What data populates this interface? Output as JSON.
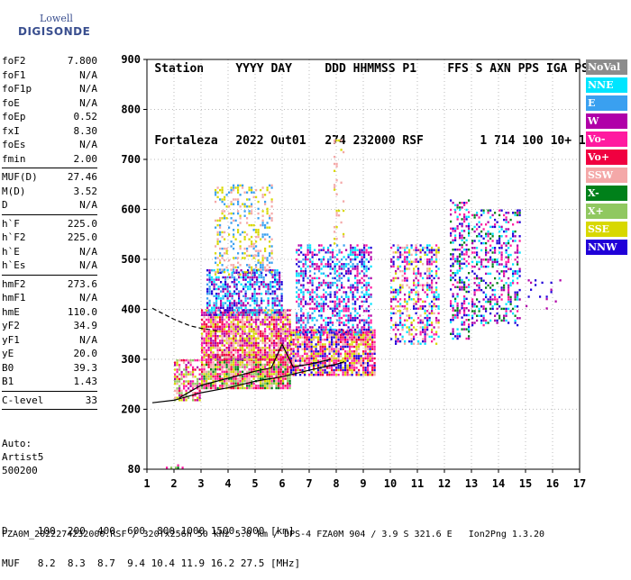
{
  "logo": {
    "line1": "Lowell",
    "line2": "DIGISONDE"
  },
  "header": {
    "row1": [
      "Station",
      "YYYY DAY",
      "DDD HHMMSS P1",
      "FFS S AXN PPS IGA PS"
    ],
    "row2": [
      "Fortaleza",
      "2022 Out01",
      "274 232000 RSF",
      "1 714 100 10+ 11"
    ]
  },
  "params": [
    {
      "label": "foF2",
      "value": "7.800"
    },
    {
      "label": "foF1",
      "value": "N/A"
    },
    {
      "label": "foF1p",
      "value": "N/A"
    },
    {
      "label": "foE",
      "value": "N/A"
    },
    {
      "label": "foEp",
      "value": "0.52"
    },
    {
      "label": "fxI",
      "value": "8.30"
    },
    {
      "label": "foEs",
      "value": "N/A"
    },
    {
      "label": "fmin",
      "value": "2.00"
    },
    {
      "sep": true
    },
    {
      "label": "MUF(D)",
      "value": "27.46"
    },
    {
      "label": "M(D)",
      "value": "3.52"
    },
    {
      "label": "D",
      "value": "N/A"
    },
    {
      "sep": true
    },
    {
      "label": "h`F",
      "value": "225.0"
    },
    {
      "label": "h`F2",
      "value": "225.0"
    },
    {
      "label": "h`E",
      "value": "N/A"
    },
    {
      "label": "h`Es",
      "value": "N/A"
    },
    {
      "sep": true
    },
    {
      "label": "hmF2",
      "value": "273.6"
    },
    {
      "label": "hmF1",
      "value": "N/A"
    },
    {
      "label": "hmE",
      "value": "110.0"
    },
    {
      "label": "yF2",
      "value": "34.9"
    },
    {
      "label": "yF1",
      "value": "N/A"
    },
    {
      "label": "yE",
      "value": "20.0"
    },
    {
      "label": "B0",
      "value": "39.3"
    },
    {
      "label": "B1",
      "value": "1.43"
    },
    {
      "sep": true
    },
    {
      "label": "C-level",
      "value": "33"
    },
    {
      "sep": true
    }
  ],
  "auto": {
    "line1": "Auto:",
    "line2": "Artist5",
    "line3": "500200"
  },
  "dtable": {
    "row1": "D     100  200  400  600  800 1000 1500 3000 [km]",
    "row2": "MUF   8.2  8.3  8.7  9.4 10.4 11.9 16.2 27.5 [MHz]"
  },
  "footer": "FZA0M_2022274232000.RSF / 320fx256h 50 kHz 5.0 km / DPS-4 FZA0M 904 / 3.9 S 321.6 E   Ion2Png 1.3.20",
  "legend": [
    {
      "label": "NoVal",
      "color": "#8c8c8c"
    },
    {
      "label": "NNE",
      "color": "#00e5ff"
    },
    {
      "label": "E",
      "color": "#3aa0f0"
    },
    {
      "label": "W",
      "color": "#b000a8"
    },
    {
      "label": "Vo-",
      "color": "#ff1aa0"
    },
    {
      "label": "Vo+",
      "color": "#f00040"
    },
    {
      "label": "SSW",
      "color": "#f4a8a8"
    },
    {
      "label": "X-",
      "color": "#00801a"
    },
    {
      "label": "X+",
      "color": "#90c860"
    },
    {
      "label": "SSE",
      "color": "#d8d800"
    },
    {
      "label": "NNW",
      "color": "#2000d8"
    }
  ],
  "chart_data": {
    "type": "scatter",
    "title": "",
    "xlabel": "",
    "ylabel": "",
    "xlim": [
      1,
      17
    ],
    "ylim": [
      80,
      900
    ],
    "x_ticks": [
      1,
      2,
      3,
      4,
      5,
      6,
      7,
      8,
      9,
      10,
      11,
      12,
      13,
      14,
      15,
      16,
      17
    ],
    "y_ticks": [
      80,
      200,
      300,
      400,
      500,
      600,
      700,
      800,
      900
    ],
    "grid": "dotted",
    "legend_position": "right",
    "echo_clusters": [
      {
        "x0": 1.7,
        "x1": 2.3,
        "y0": 83,
        "y1": 90,
        "density": 0.6,
        "colors": [
          "#00801a",
          "#ff1aa0",
          "#90c860"
        ]
      },
      {
        "x0": 2.0,
        "x1": 3.0,
        "y0": 220,
        "y1": 300,
        "density": 0.65,
        "colors": [
          "#ff1aa0",
          "#f00040",
          "#d8d800",
          "#f4a8a8",
          "#90c860",
          "#b000a8"
        ]
      },
      {
        "x0": 3.0,
        "x1": 6.3,
        "y0": 240,
        "y1": 310,
        "density": 0.9,
        "colors": [
          "#d8d800",
          "#90c860",
          "#ff1aa0",
          "#f4a8a8",
          "#f00040",
          "#00801a"
        ]
      },
      {
        "x0": 3.0,
        "x1": 6.3,
        "y0": 300,
        "y1": 400,
        "density": 0.85,
        "colors": [
          "#ff1aa0",
          "#b000a8",
          "#f00040",
          "#f4a8a8",
          "#d8d800"
        ]
      },
      {
        "x0": 3.2,
        "x1": 6.0,
        "y0": 390,
        "y1": 480,
        "density": 0.6,
        "colors": [
          "#3aa0f0",
          "#00e5ff",
          "#b000a8",
          "#2000d8"
        ]
      },
      {
        "x0": 3.5,
        "x1": 5.6,
        "y0": 470,
        "y1": 650,
        "density": 0.3,
        "colors": [
          "#f4a8a8",
          "#d8d800",
          "#3aa0f0"
        ]
      },
      {
        "x0": 6.3,
        "x1": 9.4,
        "y0": 270,
        "y1": 360,
        "density": 0.8,
        "colors": [
          "#d8d800",
          "#ff1aa0",
          "#f4a8a8",
          "#f00040",
          "#2000d8"
        ]
      },
      {
        "x0": 6.5,
        "x1": 9.3,
        "y0": 350,
        "y1": 530,
        "density": 0.5,
        "colors": [
          "#2000d8",
          "#b000a8",
          "#3aa0f0",
          "#ff1aa0",
          "#00e5ff"
        ]
      },
      {
        "x0": 10.0,
        "x1": 11.8,
        "y0": 330,
        "y1": 530,
        "density": 0.45,
        "colors": [
          "#d8d800",
          "#2000d8",
          "#00e5ff",
          "#ff1aa0",
          "#b000a8",
          "#f4a8a8"
        ]
      },
      {
        "x0": 12.2,
        "x1": 12.9,
        "y0": 340,
        "y1": 620,
        "density": 0.4,
        "colors": [
          "#00801a",
          "#2000d8",
          "#b000a8",
          "#00e5ff",
          "#ff1aa0"
        ]
      },
      {
        "x0": 13.0,
        "x1": 14.8,
        "y0": 370,
        "y1": 600,
        "density": 0.35,
        "colors": [
          "#00e5ff",
          "#2000d8",
          "#b000a8",
          "#00801a",
          "#ff1aa0"
        ]
      },
      {
        "x0": 7.9,
        "x1": 8.3,
        "y0": 530,
        "y1": 740,
        "density": 0.15,
        "colors": [
          "#d8d800",
          "#f4a8a8"
        ]
      },
      {
        "x0": 15.0,
        "x1": 16.3,
        "y0": 400,
        "y1": 460,
        "density": 0.05,
        "colors": [
          "#b000a8",
          "#2000d8"
        ]
      }
    ],
    "lower_trace": [
      [
        1.2,
        213
      ],
      [
        2,
        218
      ],
      [
        3,
        233
      ],
      [
        4,
        243
      ],
      [
        5,
        256
      ],
      [
        6,
        265
      ],
      [
        7,
        278
      ],
      [
        8,
        290
      ],
      [
        8.3,
        295
      ]
    ],
    "dashed_trace": [
      [
        1.2,
        402
      ],
      [
        2,
        380
      ],
      [
        2.6,
        367
      ],
      [
        3,
        362
      ],
      [
        3.6,
        357
      ]
    ],
    "profile_trace": [
      [
        2.2,
        223
      ],
      [
        3,
        248
      ],
      [
        4,
        262
      ],
      [
        5,
        276
      ],
      [
        5.6,
        283
      ],
      [
        6,
        330
      ],
      [
        6.4,
        285
      ],
      [
        7,
        290
      ],
      [
        7.8,
        300
      ]
    ]
  }
}
